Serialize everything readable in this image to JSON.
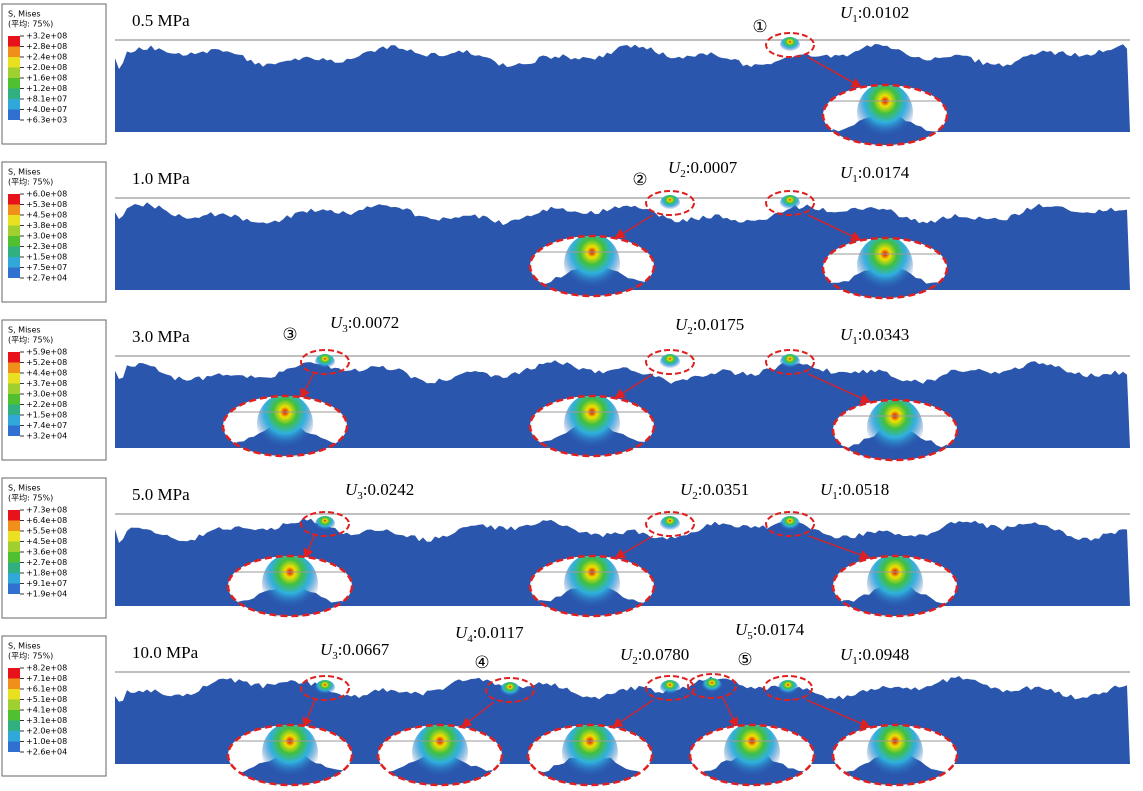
{
  "panels": [
    {
      "pressure": "0.5 MPa",
      "legend": {
        "title": "S, Mises",
        "subtitle": "(平均: 75%)",
        "labels": [
          "+3.2e+08",
          "+2.8e+08",
          "+2.4e+08",
          "+2.0e+08",
          "+1.6e+08",
          "+1.2e+08",
          "+8.1e+07",
          "+4.0e+07",
          "+6.3e+03"
        ]
      },
      "contacts": [
        {
          "marker": "①",
          "symbol": "U",
          "sub": "1",
          "text": ":0.0102"
        }
      ]
    },
    {
      "pressure": "1.0 MPa",
      "legend": {
        "title": "S, Mises",
        "subtitle": "(平均: 75%)",
        "labels": [
          "+6.0e+08",
          "+5.3e+08",
          "+4.5e+08",
          "+3.8e+08",
          "+3.0e+08",
          "+2.3e+08",
          "+1.5e+08",
          "+7.5e+07",
          "+2.7e+04"
        ]
      },
      "contacts": [
        {
          "marker": "②",
          "symbol": "U",
          "sub": "2",
          "text": ":0.0007"
        },
        {
          "symbol": "U",
          "sub": "1",
          "text": ":0.0174"
        }
      ]
    },
    {
      "pressure": "3.0 MPa",
      "legend": {
        "title": "S, Mises",
        "subtitle": "(平均: 75%)",
        "labels": [
          "+5.9e+08",
          "+5.2e+08",
          "+4.4e+08",
          "+3.7e+08",
          "+3.0e+08",
          "+2.2e+08",
          "+1.5e+08",
          "+7.4e+07",
          "+3.2e+04"
        ]
      },
      "contacts": [
        {
          "marker": "③",
          "symbol": "U",
          "sub": "3",
          "text": ":0.0072"
        },
        {
          "symbol": "U",
          "sub": "2",
          "text": ":0.0175"
        },
        {
          "symbol": "U",
          "sub": "1",
          "text": ":0.0343"
        }
      ]
    },
    {
      "pressure": "5.0 MPa",
      "legend": {
        "title": "S, Mises",
        "subtitle": "(平均: 75%)",
        "labels": [
          "+7.3e+08",
          "+6.4e+08",
          "+5.5e+08",
          "+4.5e+08",
          "+3.6e+08",
          "+2.7e+08",
          "+1.8e+08",
          "+9.1e+07",
          "+1.9e+04"
        ]
      },
      "contacts": [
        {
          "symbol": "U",
          "sub": "3",
          "text": ":0.0242"
        },
        {
          "symbol": "U",
          "sub": "2",
          "text": ":0.0351"
        },
        {
          "symbol": "U",
          "sub": "1",
          "text": ":0.0518"
        }
      ]
    },
    {
      "pressure": "10.0 MPa",
      "legend": {
        "title": "S, Mises",
        "subtitle": "(平均: 75%)",
        "labels": [
          "+8.2e+08",
          "+7.1e+08",
          "+6.1e+08",
          "+5.1e+08",
          "+4.1e+08",
          "+3.1e+08",
          "+2.0e+08",
          "+1.0e+08",
          "+2.6e+04"
        ]
      },
      "contacts": [
        {
          "symbol": "U",
          "sub": "3",
          "text": ":0.0667"
        },
        {
          "marker": "④",
          "symbol": "U",
          "sub": "4",
          "text": ":0.0117"
        },
        {
          "symbol": "U",
          "sub": "2",
          "text": ":0.0780"
        },
        {
          "marker": "⑤",
          "symbol": "U",
          "sub": "5",
          "text": ":0.0174"
        },
        {
          "symbol": "U",
          "sub": "1",
          "text": ":0.0948"
        }
      ]
    }
  ]
}
